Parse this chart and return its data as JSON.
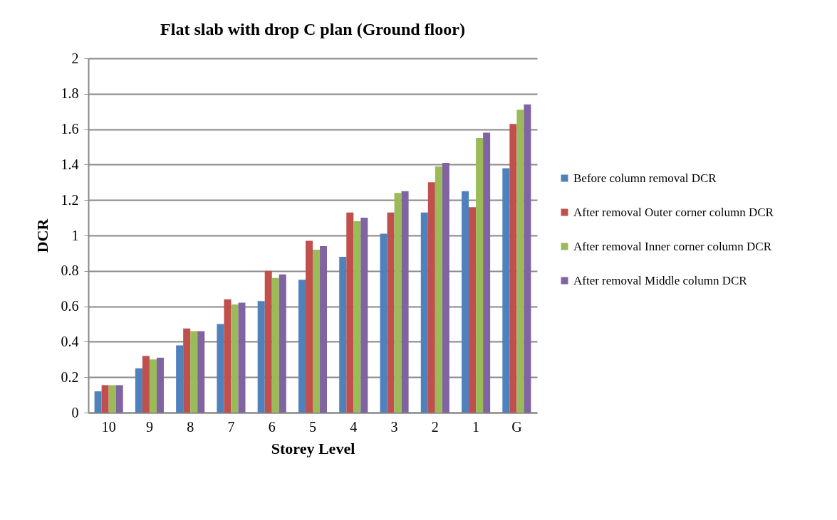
{
  "chart_data": {
    "type": "bar",
    "title": "Flat slab with drop C plan (Ground floor)",
    "xlabel": "Storey Level",
    "ylabel": "DCR",
    "categories": [
      "10",
      "9",
      "8",
      "7",
      "6",
      "5",
      "4",
      "3",
      "2",
      "1",
      "G"
    ],
    "series": [
      {
        "name": "Before column removal DCR",
        "color": "#4f81bd",
        "values": [
          0.12,
          0.25,
          0.38,
          0.5,
          0.63,
          0.75,
          0.88,
          1.01,
          1.13,
          1.25,
          1.38
        ]
      },
      {
        "name": "After removal Outer corner column DCR",
        "color": "#c0504d",
        "values": [
          0.155,
          0.32,
          0.475,
          0.64,
          0.8,
          0.97,
          1.13,
          1.13,
          1.3,
          1.16,
          1.63
        ]
      },
      {
        "name": "After removal Inner corner column DCR",
        "color": "#9bbb59",
        "values": [
          0.155,
          0.3,
          0.46,
          0.61,
          0.76,
          0.92,
          1.08,
          1.24,
          1.39,
          1.55,
          1.71
        ]
      },
      {
        "name": "After removal Middle column DCR",
        "color": "#8064a2",
        "values": [
          0.155,
          0.31,
          0.46,
          0.62,
          0.78,
          0.94,
          1.1,
          1.25,
          1.41,
          1.58,
          1.74
        ]
      }
    ],
    "ylim": [
      0,
      2
    ],
    "yticks": [
      0,
      0.2,
      0.4,
      0.6,
      0.8,
      1,
      1.2,
      1.4,
      1.6,
      1.8,
      2
    ],
    "grid": "y",
    "legend": "right"
  }
}
